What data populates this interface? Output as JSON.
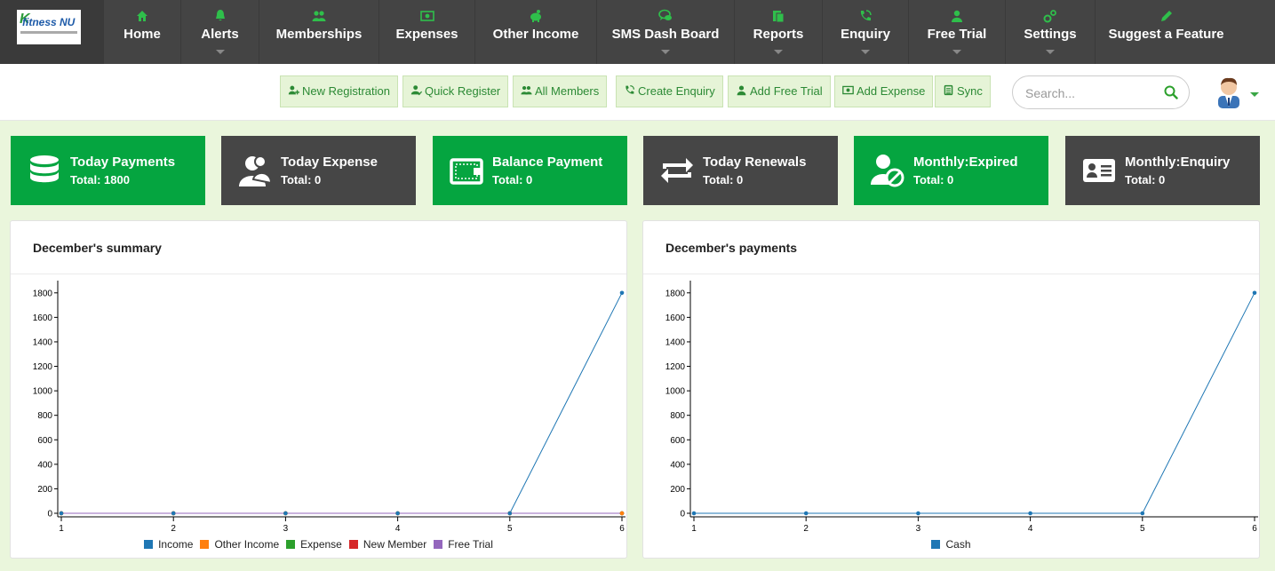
{
  "logo": {
    "text": "fitness NU"
  },
  "nav": [
    {
      "label": "Home",
      "icon": "home-icon",
      "caret": false
    },
    {
      "label": "Alerts",
      "icon": "bell-icon",
      "caret": true
    },
    {
      "label": "Memberships",
      "icon": "users-icon",
      "caret": false
    },
    {
      "label": "Expenses",
      "icon": "money-icon",
      "caret": false
    },
    {
      "label": "Other Income",
      "icon": "piggy-bank-icon",
      "caret": false
    },
    {
      "label": "SMS Dash Board",
      "icon": "chat-icon",
      "caret": true
    },
    {
      "label": "Reports",
      "icon": "reports-icon",
      "caret": true
    },
    {
      "label": "Enquiry",
      "icon": "phone-icon",
      "caret": true
    },
    {
      "label": "Free Trial",
      "icon": "user-icon",
      "caret": true
    },
    {
      "label": "Settings",
      "icon": "gears-icon",
      "caret": true
    },
    {
      "label": "Suggest a Feature",
      "icon": "pencil-icon",
      "caret": false
    }
  ],
  "toolbar": {
    "buttons": [
      {
        "label": "New Registration",
        "icon": "add-user-icon"
      },
      {
        "label": "Quick Register",
        "icon": "user-check-icon"
      },
      {
        "label": "All Members",
        "icon": "users-icon"
      },
      {
        "label": "Create Enquiry",
        "icon": "phone-icon"
      },
      {
        "label": "Add Free Trial",
        "icon": "user-icon"
      },
      {
        "label": "Add Expense",
        "icon": "money-icon"
      },
      {
        "label": "Sync",
        "icon": "sync-icon"
      }
    ],
    "search_placeholder": "Search..."
  },
  "cards": [
    {
      "title": "Today Payments",
      "total": "Total: 1800",
      "theme": "green",
      "icon": "database-icon"
    },
    {
      "title": "Today Expense",
      "total": "Total: 0",
      "theme": "dark",
      "icon": "user-group-icon"
    },
    {
      "title": "Balance Payment",
      "total": "Total: 0",
      "theme": "green",
      "icon": "wallet-icon"
    },
    {
      "title": "Today Renewals",
      "total": "Total: 0",
      "theme": "dark",
      "icon": "renew-icon"
    },
    {
      "title": "Monthly:Expired",
      "total": "Total: 0",
      "theme": "green",
      "icon": "user-blocked-icon"
    },
    {
      "title": "Monthly:Enquiry",
      "total": "Total: 0",
      "theme": "dark",
      "icon": "id-card-icon"
    }
  ],
  "colors": {
    "brand_green": "#05a540",
    "dark": "#464646",
    "income": "#1f77b4",
    "other_income": "#ff7f0e",
    "expense": "#2ca02c",
    "new_member": "#d62728",
    "free_trial": "#9467bd",
    "cash": "#1f77b4"
  },
  "chart_data": [
    {
      "type": "line",
      "title": "December's summary",
      "x": [
        1,
        2,
        3,
        4,
        5,
        6
      ],
      "ylim": [
        0,
        1900
      ],
      "yticks": [
        0,
        200,
        400,
        600,
        800,
        1000,
        1200,
        1400,
        1600,
        1800
      ],
      "series": [
        {
          "name": "Income",
          "values": [
            0,
            0,
            0,
            0,
            0,
            1800
          ],
          "color": "#1f77b4"
        },
        {
          "name": "Other Income",
          "values": [
            0,
            0,
            0,
            0,
            0,
            0
          ],
          "color": "#ff7f0e"
        },
        {
          "name": "Expense",
          "values": [
            0,
            0,
            0,
            0,
            0,
            0
          ],
          "color": "#2ca02c"
        },
        {
          "name": "New Member",
          "values": [
            0,
            0,
            0,
            0,
            0,
            0
          ],
          "color": "#d62728"
        },
        {
          "name": "Free Trial",
          "values": [
            0,
            0,
            0,
            0,
            0,
            0
          ],
          "color": "#9467bd"
        }
      ],
      "legend": "bottom"
    },
    {
      "type": "line",
      "title": "December's payments",
      "x": [
        1,
        2,
        3,
        4,
        5,
        6
      ],
      "ylim": [
        0,
        1900
      ],
      "yticks": [
        0,
        200,
        400,
        600,
        800,
        1000,
        1200,
        1400,
        1600,
        1800
      ],
      "series": [
        {
          "name": "Cash",
          "values": [
            0,
            0,
            0,
            0,
            0,
            1800
          ],
          "color": "#1f77b4"
        }
      ],
      "legend": "bottom"
    }
  ]
}
